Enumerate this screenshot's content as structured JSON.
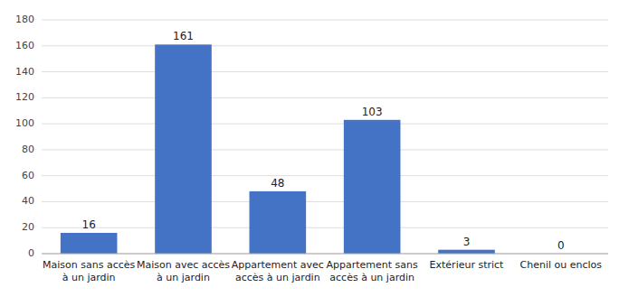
{
  "chart_data": {
    "type": "bar",
    "categories": [
      "Maison sans accès\nà un jardin",
      "Maison avec accès\nà un jardin",
      "Appartement avec\naccès à un jardin",
      "Appartement sans\naccès à un jardin",
      "Extérieur strict",
      "Chenil ou enclos"
    ],
    "values": [
      16,
      161,
      48,
      103,
      3,
      0
    ],
    "color": "#4472C4",
    "ylim": [
      0,
      180
    ],
    "yticks": [
      0,
      20,
      40,
      60,
      80,
      100,
      120,
      140,
      160,
      180
    ],
    "grid": true,
    "data_labels": true
  }
}
